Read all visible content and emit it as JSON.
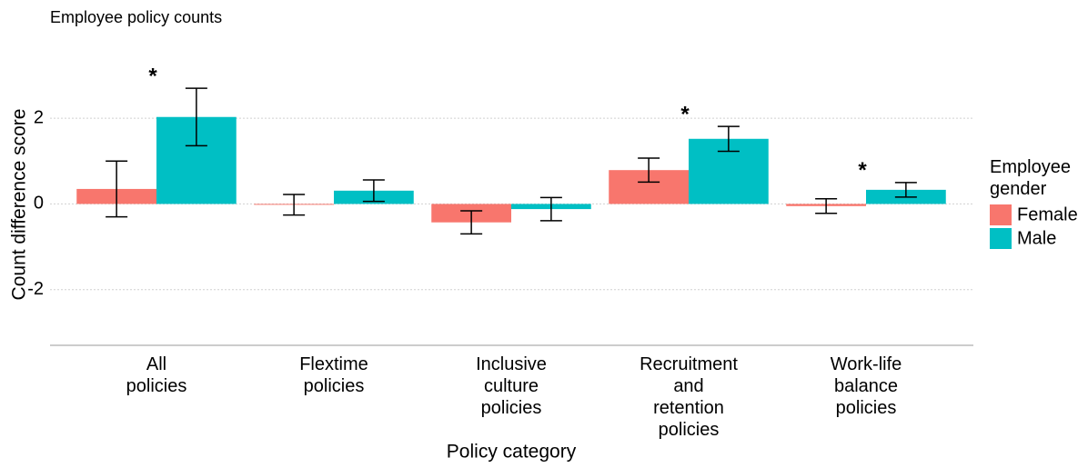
{
  "chart_data": {
    "type": "bar",
    "title": "Employee policy counts",
    "x_label": "Policy category",
    "y_label": "Count difference score",
    "legend_title": "Employee gender",
    "categories": [
      "All policies",
      "Flextime policies",
      "Inclusive culture policies",
      "Recruitment and retention policies",
      "Work-life balance policies"
    ],
    "series": [
      {
        "name": "Female",
        "color": "#F8766D",
        "values": [
          0.35,
          -0.02,
          -0.43,
          0.79,
          -0.05
        ],
        "errors": [
          0.65,
          0.24,
          0.27,
          0.28,
          0.17
        ]
      },
      {
        "name": "Male",
        "color": "#00BFC4",
        "values": [
          2.03,
          0.31,
          -0.12,
          1.52,
          0.33
        ],
        "errors": [
          0.67,
          0.25,
          0.27,
          0.29,
          0.17
        ]
      }
    ],
    "annotations": [
      "*",
      null,
      null,
      "*",
      "*"
    ],
    "ylim": [
      -3.3,
      3.7
    ],
    "yticks": [
      -2,
      0,
      2
    ],
    "grid": true,
    "legend": "right"
  }
}
